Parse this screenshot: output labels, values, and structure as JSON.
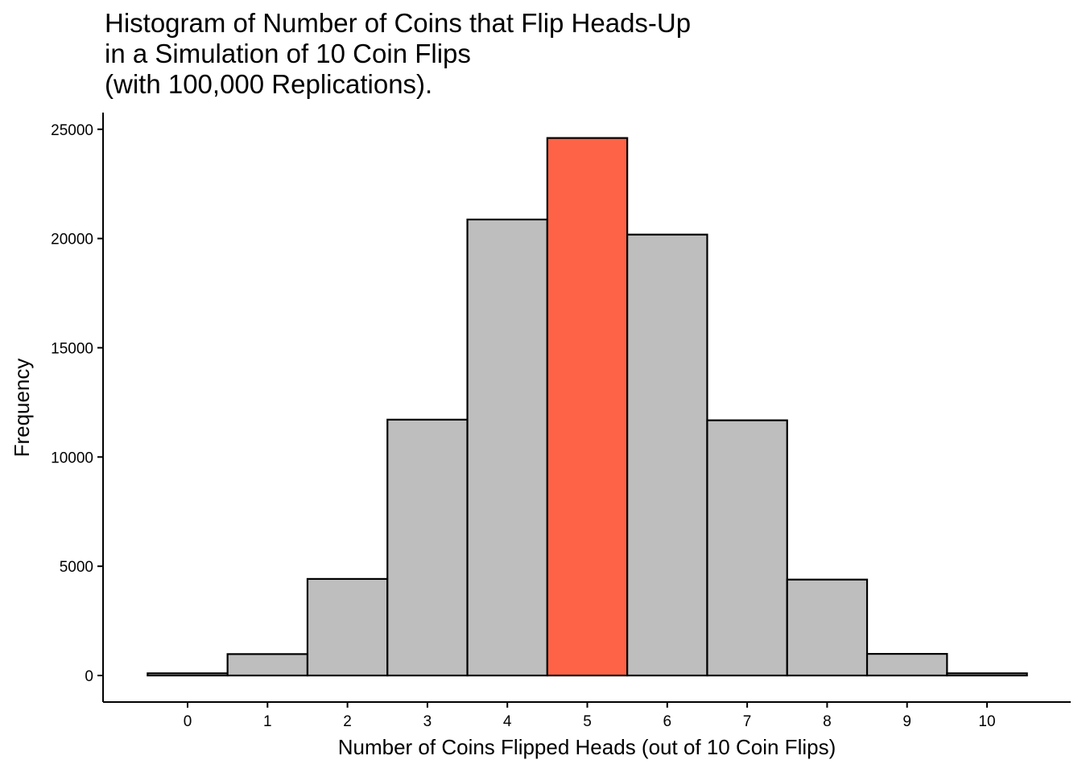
{
  "chart_data": {
    "type": "bar",
    "title": "Histogram of Number of Coins that Flip Heads-Up\nin a Simulation of 10 Coin Flips\n(with 100,000 Replications).",
    "title_lines": [
      "Histogram of Number of Coins that Flip Heads-Up",
      "in a Simulation of 10 Coin Flips",
      "(with 100,000 Replications)."
    ],
    "xlabel": "Number of Coins Flipped Heads (out of 10 Coin Flips)",
    "ylabel": "Frequency",
    "categories": [
      "0",
      "1",
      "2",
      "3",
      "4",
      "5",
      "6",
      "7",
      "8",
      "9",
      "10"
    ],
    "values": [
      100,
      980,
      4420,
      11710,
      20870,
      24600,
      20180,
      11680,
      4390,
      990,
      100
    ],
    "highlight_category": "5",
    "ylim": [
      0,
      25000
    ],
    "yticks": [
      0,
      5000,
      10000,
      15000,
      20000,
      25000
    ],
    "grid": false,
    "legend": "none",
    "colors": {
      "bar_fill": "#bebebe",
      "highlight_fill": "#ff6347",
      "bar_stroke": "#000000"
    }
  }
}
